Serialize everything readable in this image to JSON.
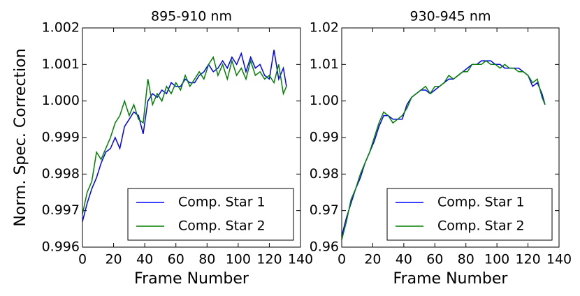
{
  "chart_data": [
    {
      "type": "line",
      "title": "895-910 nm",
      "xlabel": "Frame Number",
      "ylabel": "Norm. Spec. Correction",
      "x": [
        0,
        3,
        6,
        9,
        12,
        15,
        18,
        21,
        24,
        27,
        30,
        33,
        36,
        39,
        42,
        45,
        48,
        51,
        54,
        57,
        60,
        63,
        66,
        69,
        72,
        75,
        78,
        81,
        84,
        87,
        90,
        93,
        96,
        99,
        102,
        105,
        108,
        111,
        114,
        117,
        120,
        123,
        126,
        129,
        131
      ],
      "series": [
        {
          "name": "Comp. Star 1",
          "color": "#0000ff",
          "values": [
            0.9967,
            0.9972,
            0.9976,
            0.9979,
            0.9983,
            0.9986,
            0.9987,
            0.999,
            0.9987,
            0.9993,
            0.9995,
            0.9997,
            0.9996,
            0.9991,
            1.0,
            1.0002,
            1.0001,
            1.0003,
            1.0002,
            1.0005,
            1.0004,
            1.0004,
            1.0006,
            1.0005,
            1.0005,
            1.0007,
            1.0008,
            1.001,
            1.0008,
            1.0009,
            1.0011,
            1.0009,
            1.0012,
            1.001,
            1.0013,
            1.0008,
            1.0012,
            1.0009,
            1.001,
            1.0007,
            1.0006,
            1.0014,
            1.0006,
            1.0009,
            1.0004
          ]
        },
        {
          "name": "Comp. Star 2",
          "color": "#008000",
          "values": [
            0.9969,
            0.9975,
            0.9978,
            0.9986,
            0.9984,
            0.9987,
            0.999,
            0.9994,
            0.9996,
            1.0,
            0.9996,
            0.9999,
            0.9995,
            0.9994,
            1.0006,
            0.9999,
            1.0002,
            1.0,
            1.0004,
            1.0002,
            1.0005,
            1.0003,
            1.0007,
            1.0004,
            1.0006,
            1.0008,
            1.0006,
            1.001,
            1.0012,
            1.0007,
            1.001,
            1.0006,
            1.0011,
            1.0007,
            1.0009,
            1.0006,
            1.0011,
            1.0007,
            1.0008,
            1.0006,
            1.0007,
            1.0005,
            1.001,
            1.0002,
            1.0004
          ]
        }
      ],
      "xlim": [
        0,
        140
      ],
      "xticks": [
        0,
        20,
        40,
        60,
        80,
        100,
        120,
        140
      ],
      "ylim": [
        0.996,
        1.002
      ],
      "yticks": [
        0.996,
        0.997,
        0.998,
        0.999,
        {
          "value": 1,
          "label": "1.000"
        },
        1.001,
        1.002
      ],
      "legend": "lower right"
    },
    {
      "type": "line",
      "title": "930-945 nm",
      "xlabel": "Frame Number",
      "x": [
        0,
        3,
        6,
        9,
        12,
        15,
        18,
        21,
        24,
        27,
        30,
        33,
        36,
        39,
        42,
        45,
        48,
        51,
        54,
        57,
        60,
        63,
        66,
        69,
        72,
        75,
        78,
        81,
        84,
        87,
        90,
        93,
        96,
        99,
        102,
        105,
        108,
        111,
        114,
        117,
        120,
        123,
        126,
        129,
        131
      ],
      "series": [
        {
          "name": "Comp. Star 1",
          "color": "#0000ff",
          "values": [
            0.963,
            0.968,
            0.972,
            0.976,
            0.979,
            0.983,
            0.986,
            0.989,
            0.993,
            0.996,
            0.996,
            0.995,
            0.995,
            0.995,
            0.999,
            1.001,
            1.002,
            1.003,
            1.003,
            1.002,
            1.003,
            1.004,
            1.005,
            1.006,
            1.006,
            1.007,
            1.008,
            1.009,
            1.01,
            1.01,
            1.011,
            1.011,
            1.011,
            1.01,
            1.01,
            1.009,
            1.009,
            1.009,
            1.009,
            1.008,
            1.007,
            1.004,
            1.005,
            1.002,
            0.999
          ]
        },
        {
          "name": "Comp. Star 2",
          "color": "#008000",
          "values": [
            0.962,
            0.967,
            0.973,
            0.976,
            0.98,
            0.983,
            0.986,
            0.99,
            0.994,
            0.997,
            0.996,
            0.994,
            0.995,
            0.996,
            0.998,
            1.001,
            1.002,
            1.003,
            1.004,
            1.002,
            1.004,
            1.004,
            1.005,
            1.007,
            1.006,
            1.007,
            1.008,
            1.008,
            1.01,
            1.01,
            1.01,
            1.011,
            1.01,
            1.01,
            1.009,
            1.01,
            1.009,
            1.009,
            1.008,
            1.008,
            1.007,
            1.005,
            1.006,
            1.001,
            0.999
          ]
        }
      ],
      "xlim": [
        0,
        140
      ],
      "xticks": [
        0,
        20,
        40,
        60,
        80,
        100,
        120,
        140
      ],
      "ylim": [
        0.96,
        1.02
      ],
      "yticks": [
        0.96,
        0.97,
        0.98,
        0.99,
        {
          "value": 1,
          "label": "1.00"
        },
        1.01,
        1.02
      ],
      "legend": "lower right"
    }
  ]
}
